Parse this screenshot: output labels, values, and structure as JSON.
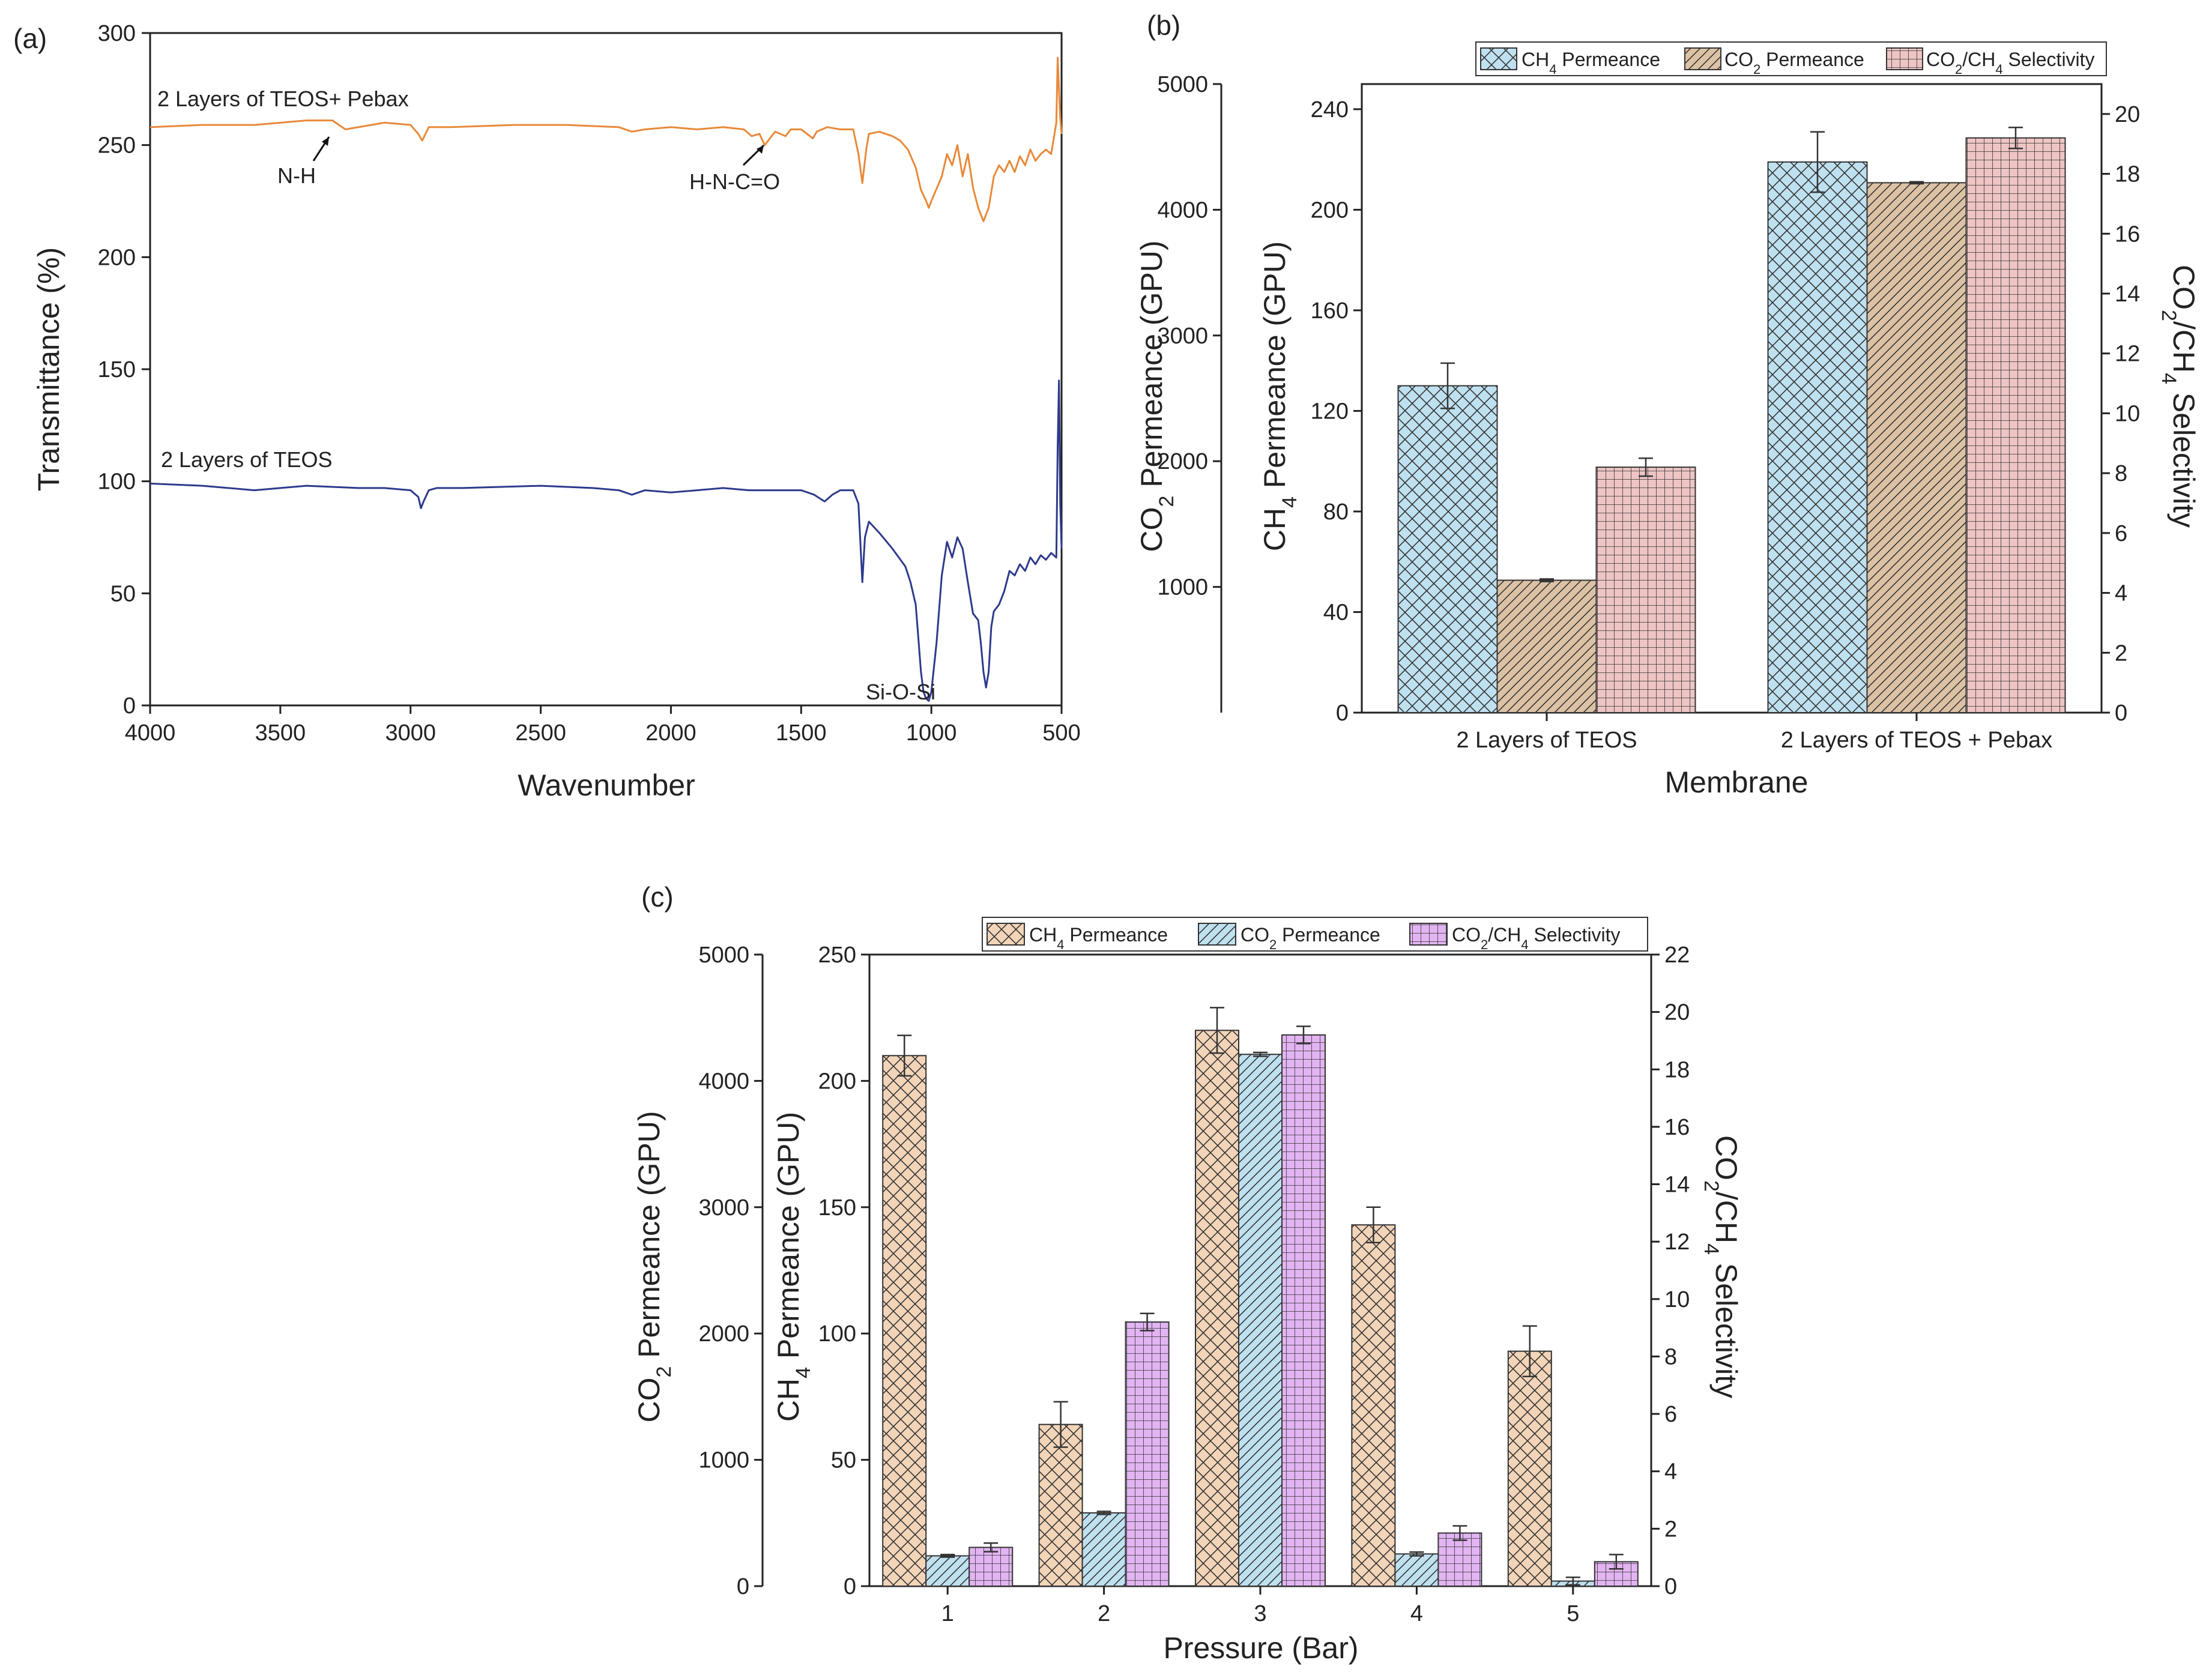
{
  "chart_data": [
    {
      "panel_label": "(a)",
      "type": "line",
      "xlabel": "Wavenumber",
      "ylabel": "Transmittance (%)",
      "xlim": [
        4000,
        500
      ],
      "ylim": [
        0,
        300
      ],
      "xticks": [
        4000,
        3500,
        3000,
        2500,
        2000,
        1500,
        1000,
        500
      ],
      "yticks": [
        0,
        50,
        100,
        150,
        200,
        250,
        300
      ],
      "series": [
        {
          "name": "2 Layers of TEOS+ Pebax",
          "color": "#e8893a",
          "x": [
            4000,
            3800,
            3600,
            3400,
            3300,
            3250,
            3100,
            3000,
            2970,
            2955,
            2930,
            2850,
            2600,
            2400,
            2200,
            2150,
            2100,
            2000,
            1900,
            1800,
            1720,
            1690,
            1660,
            1640,
            1600,
            1560,
            1540,
            1500,
            1455,
            1440,
            1400,
            1350,
            1300,
            1280,
            1265,
            1250,
            1240,
            1200,
            1150,
            1120,
            1090,
            1060,
            1040,
            1020,
            1010,
            1000,
            960,
            940,
            920,
            900,
            880,
            860,
            840,
            820,
            800,
            780,
            760,
            740,
            720,
            700,
            680,
            660,
            640,
            620,
            600,
            580,
            560,
            540,
            520,
            515,
            510,
            505,
            500
          ],
          "y": [
            258,
            259,
            259,
            261,
            261,
            257,
            260,
            259,
            255,
            252,
            258,
            258,
            259,
            259,
            258,
            256,
            257,
            258,
            257,
            258,
            257,
            254,
            255,
            250,
            256,
            254,
            257,
            257,
            253,
            256,
            258,
            257,
            257,
            246,
            233,
            248,
            255,
            256,
            254,
            252,
            248,
            240,
            230,
            225,
            222,
            225,
            236,
            246,
            241,
            250,
            236,
            246,
            231,
            222,
            216,
            222,
            236,
            241,
            238,
            243,
            238,
            245,
            241,
            248,
            243,
            246,
            248,
            246,
            260,
            289,
            275,
            262,
            255
          ]
        },
        {
          "name": "2 Layers of TEOS",
          "color": "#2d3a8c",
          "x": [
            4000,
            3800,
            3600,
            3400,
            3200,
            3100,
            3000,
            2970,
            2960,
            2950,
            2930,
            2900,
            2800,
            2500,
            2300,
            2200,
            2150,
            2100,
            2000,
            1900,
            1800,
            1700,
            1600,
            1500,
            1450,
            1410,
            1380,
            1350,
            1300,
            1280,
            1265,
            1255,
            1240,
            1200,
            1150,
            1100,
            1080,
            1060,
            1050,
            1040,
            1030,
            1020,
            1010,
            1000,
            980,
            960,
            940,
            920,
            900,
            880,
            860,
            840,
            820,
            810,
            800,
            790,
            780,
            770,
            760,
            740,
            720,
            700,
            680,
            660,
            640,
            620,
            600,
            580,
            560,
            540,
            520,
            515,
            510,
            505,
            500
          ],
          "y": [
            99,
            98,
            96,
            98,
            97,
            97,
            96,
            93,
            88,
            91,
            96,
            97,
            97,
            98,
            97,
            96,
            94,
            96,
            95,
            96,
            97,
            96,
            96,
            96,
            94,
            91,
            94,
            96,
            96,
            90,
            55,
            75,
            82,
            77,
            70,
            62,
            55,
            45,
            30,
            15,
            6,
            3,
            2,
            6,
            28,
            58,
            73,
            66,
            75,
            70,
            55,
            41,
            38,
            28,
            15,
            8,
            15,
            35,
            42,
            45,
            51,
            60,
            58,
            63,
            60,
            66,
            63,
            67,
            65,
            68,
            66,
            115,
            145,
            90,
            70
          ]
        }
      ],
      "annotations": [
        "N-H",
        "H-N-C=O",
        "Si-O-Si"
      ]
    },
    {
      "panel_label": "(b)",
      "type": "bar",
      "xlabel": "Membrane",
      "ylabel_left_outer": "CO2 Permeance (GPU)",
      "ylabel_left_inner": "CH4 Permeance (GPU)",
      "ylabel_right": "CO2/CH4 Selectivity",
      "categories": [
        "2 Layers of TEOS",
        "2 Layers of TEOS + Pebax"
      ],
      "ylim_co2": [
        0,
        5000
      ],
      "ylim_ch4": [
        0,
        250
      ],
      "ylim_sel": [
        0,
        21
      ],
      "yticks_co2": [
        1000,
        2000,
        3000,
        4000,
        5000
      ],
      "yticks_ch4": [
        0,
        40,
        80,
        120,
        160,
        200,
        240
      ],
      "yticks_sel": [
        0,
        2,
        4,
        6,
        8,
        10,
        12,
        14,
        16,
        18,
        20
      ],
      "series": [
        {
          "name": "CH4 Permeance",
          "axis": "ch4",
          "values": [
            130,
            219
          ],
          "errors": [
            9,
            12
          ],
          "color": "#bfe0ef",
          "pattern": "crosshatch"
        },
        {
          "name": "CO2 Permeance",
          "axis": "co2",
          "values": [
            1053,
            4215
          ],
          "errors": [
            10,
            8
          ],
          "color": "#dcc2a5",
          "pattern": "diagonal"
        },
        {
          "name": "CO2/CH4 Selectivity",
          "axis": "sel",
          "values": [
            8.2,
            19.2
          ],
          "errors": [
            0.3,
            0.35
          ],
          "color": "#eec4c4",
          "pattern": "grid"
        }
      ],
      "legend": {
        "placement": "top-right",
        "items": [
          "CH4 Permeance",
          "CO2 Permeance",
          "CO2/CH4 Selectivity"
        ]
      }
    },
    {
      "panel_label": "(c)",
      "type": "bar",
      "xlabel": "Pressure (Bar)",
      "ylabel_left_outer": "CO2 Permeance (GPU)",
      "ylabel_left_inner": "CH4 Permeance (GPU)",
      "ylabel_right": "CO2/CH4 Selectivity",
      "categories": [
        "1",
        "2",
        "3",
        "4",
        "5"
      ],
      "ylim_co2": [
        0,
        5000
      ],
      "ylim_ch4": [
        0,
        250
      ],
      "ylim_sel": [
        0,
        22
      ],
      "yticks_co2": [
        0,
        1000,
        2000,
        3000,
        4000,
        5000
      ],
      "yticks_ch4": [
        0,
        50,
        100,
        150,
        200,
        250
      ],
      "yticks_sel": [
        0,
        2,
        4,
        6,
        8,
        10,
        12,
        14,
        16,
        18,
        20,
        22
      ],
      "series": [
        {
          "name": "CH4 Permeance",
          "axis": "ch4",
          "values": [
            210,
            64,
            220,
            143,
            93
          ],
          "errors": [
            8,
            9,
            9,
            7,
            10
          ],
          "color": "#f2d4b8",
          "pattern": "crosshatch"
        },
        {
          "name": "CO2 Permeance",
          "axis": "co2",
          "values": [
            240,
            580,
            4210,
            255,
            40
          ],
          "errors": [
            10,
            12,
            15,
            15,
            30
          ],
          "color": "#bfe0ef",
          "pattern": "diagonal"
        },
        {
          "name": "CO2/CH4 Selectivity",
          "axis": "sel",
          "values": [
            1.35,
            9.2,
            19.2,
            1.85,
            0.85
          ],
          "errors": [
            0.15,
            0.3,
            0.3,
            0.25,
            0.25
          ],
          "color": "#e2b4f2",
          "pattern": "grid"
        }
      ],
      "legend": {
        "placement": "top-right",
        "items": [
          "CH4 Permeance",
          "CO2 Permeance",
          "CO2/CH4 Selectivity"
        ]
      }
    }
  ]
}
